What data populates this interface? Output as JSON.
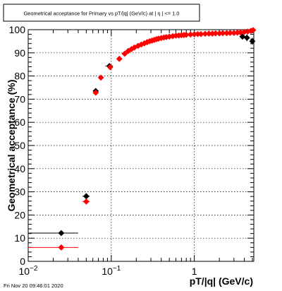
{
  "chart_data": {
    "type": "scatter",
    "title": "Geometrical acceptance for Primary vs pT/|q| (GeV/c) at | η | <= 1.0",
    "xlabel": "pT/|q| (GeV/c)",
    "ylabel": "Geometrical acceptance (%)",
    "x_scale": "log",
    "xlim": [
      0.01,
      5.2
    ],
    "ylim": [
      0,
      100
    ],
    "x_tick_labels": [
      {
        "value": 0.01,
        "base": "10",
        "exp": "−2"
      },
      {
        "value": 0.1,
        "base": "10",
        "exp": "−1"
      },
      {
        "value": 1,
        "base": "1",
        "exp": ""
      }
    ],
    "y_ticks": [
      0,
      10,
      20,
      30,
      40,
      50,
      60,
      70,
      80,
      90,
      100
    ],
    "grid": true,
    "timestamp": "Fri Nov 20 09:46:01 2020",
    "series": [
      {
        "color": "#000000",
        "points": [
          {
            "x": 0.025,
            "xlo": 0.01,
            "xhi": 0.04,
            "y": 12.2,
            "yerr": 0.6
          },
          {
            "x": 0.05,
            "xlo": 0.045,
            "xhi": 0.055,
            "y": 28.1,
            "yerr": 0.8
          },
          {
            "x": 0.065,
            "xlo": 0.062,
            "xhi": 0.068,
            "y": 73.5,
            "yerr": 0.8
          },
          {
            "x": 0.095,
            "xlo": 0.085,
            "xhi": 0.105,
            "y": 84.3,
            "yerr": 0.6
          },
          {
            "x": 3.8,
            "xlo": 3.5,
            "xhi": 4.1,
            "y": 97.0,
            "yerr": 1.2
          },
          {
            "x": 4.3,
            "xlo": 4.0,
            "xhi": 4.6,
            "y": 96.5,
            "yerr": 1.5
          },
          {
            "x": 5.0,
            "xlo": 4.8,
            "xhi": 5.2,
            "y": 95.0,
            "yerr": 1.5
          }
        ]
      },
      {
        "color": "#ff0000",
        "points": [
          {
            "x": 0.025,
            "xlo": 0.01,
            "xhi": 0.04,
            "y": 6.0,
            "yerr": 0.4
          },
          {
            "x": 0.05,
            "xlo": 0.045,
            "xhi": 0.055,
            "y": 25.8,
            "yerr": 0.8
          },
          {
            "x": 0.065,
            "xlo": 0.062,
            "xhi": 0.068,
            "y": 72.8,
            "yerr": 0.8
          },
          {
            "x": 0.075,
            "y": 79.3
          },
          {
            "x": 0.097,
            "y": 83.8
          },
          {
            "x": 0.125,
            "y": 87.4
          },
          {
            "x": 0.145,
            "y": 89.6
          },
          {
            "x": 0.16,
            "y": 90.8
          },
          {
            "x": 0.175,
            "y": 91.6
          },
          {
            "x": 0.19,
            "y": 92.3
          },
          {
            "x": 0.21,
            "y": 93.0
          },
          {
            "x": 0.23,
            "y": 93.6
          },
          {
            "x": 0.25,
            "y": 94.1
          },
          {
            "x": 0.27,
            "y": 94.6
          },
          {
            "x": 0.29,
            "y": 95.0
          },
          {
            "x": 0.31,
            "y": 95.3
          },
          {
            "x": 0.33,
            "y": 95.6
          },
          {
            "x": 0.35,
            "y": 95.9
          },
          {
            "x": 0.37,
            "y": 96.1
          },
          {
            "x": 0.4,
            "y": 96.4
          },
          {
            "x": 0.43,
            "y": 96.6
          },
          {
            "x": 0.46,
            "y": 96.8
          },
          {
            "x": 0.5,
            "y": 97.0
          },
          {
            "x": 0.55,
            "y": 97.2
          },
          {
            "x": 0.6,
            "y": 97.4
          },
          {
            "x": 0.65,
            "y": 97.5
          },
          {
            "x": 0.7,
            "y": 97.6
          },
          {
            "x": 0.75,
            "y": 97.7
          },
          {
            "x": 0.8,
            "y": 97.8
          },
          {
            "x": 0.9,
            "y": 97.9
          },
          {
            "x": 1.0,
            "y": 98.0
          },
          {
            "x": 1.1,
            "y": 98.1
          },
          {
            "x": 1.2,
            "y": 98.1
          },
          {
            "x": 1.35,
            "y": 98.2
          },
          {
            "x": 1.5,
            "y": 98.3
          },
          {
            "x": 1.65,
            "y": 98.3
          },
          {
            "x": 1.8,
            "y": 98.4
          },
          {
            "x": 2.0,
            "y": 98.4
          },
          {
            "x": 2.2,
            "y": 98.5
          },
          {
            "x": 2.45,
            "y": 98.5
          },
          {
            "x": 2.7,
            "y": 98.6
          },
          {
            "x": 3.0,
            "y": 98.6
          },
          {
            "x": 3.3,
            "y": 98.7
          },
          {
            "x": 3.6,
            "y": 98.8
          },
          {
            "x": 4.0,
            "y": 99.0
          },
          {
            "x": 4.4,
            "y": 99.2
          },
          {
            "x": 4.8,
            "y": 99.5
          },
          {
            "x": 5.1,
            "y": 99.8
          }
        ]
      }
    ]
  }
}
